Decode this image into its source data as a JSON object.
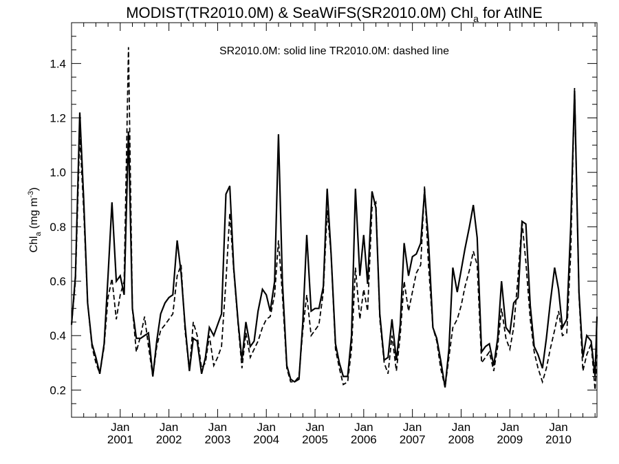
{
  "chart_data": {
    "type": "line",
    "title": {
      "main": "MODIST(TR2010.0M) & SeaWiFS(SR2010.0M)  Chl",
      "sub": "a",
      "suffix": " for AtlNE"
    },
    "annotation": "SR2010.0M: solid line   TR2010.0M: dashed line",
    "ylabel": {
      "main": "Chl",
      "sub": "a",
      "unit_prefix": " (mg m",
      "unit_sup": "-3",
      "unit_suffix": ")"
    },
    "xlim": [
      2000.0,
      2010.79
    ],
    "ylim": [
      0.1,
      1.55
    ],
    "yticks": [
      "0.2",
      "0.4",
      "0.6",
      "0.8",
      "1.0",
      "1.2",
      "1.4"
    ],
    "xticks": [
      {
        "month": "Jan",
        "year": "2001"
      },
      {
        "month": "Jan",
        "year": "2002"
      },
      {
        "month": "Jan",
        "year": "2003"
      },
      {
        "month": "Jan",
        "year": "2004"
      },
      {
        "month": "Jan",
        "year": "2005"
      },
      {
        "month": "Jan",
        "year": "2006"
      },
      {
        "month": "Jan",
        "year": "2007"
      },
      {
        "month": "Jan",
        "year": "2008"
      },
      {
        "month": "Jan",
        "year": "2009"
      },
      {
        "month": "Jan",
        "year": "2010"
      }
    ],
    "series": [
      {
        "style": "solid",
        "x": [
          2000.0,
          2000.08,
          2000.17,
          2000.25,
          2000.33,
          2000.42,
          2000.5,
          2000.58,
          2000.67,
          2000.75,
          2000.83,
          2000.92,
          2001.0,
          2001.08,
          2001.17,
          2001.25,
          2001.33,
          2001.42,
          2001.5,
          2001.58,
          2001.67,
          2001.75,
          2001.83,
          2001.92,
          2002.0,
          2002.08,
          2002.17,
          2002.25,
          2002.33,
          2002.42,
          2002.5,
          2002.58,
          2002.67,
          2002.75,
          2002.83,
          2002.92,
          2003.0,
          2003.08,
          2003.17,
          2003.25,
          2003.33,
          2003.42,
          2003.5,
          2003.58,
          2003.67,
          2003.75,
          2003.83,
          2003.92,
          2004.0,
          2004.08,
          2004.17,
          2004.25,
          2004.33,
          2004.42,
          2004.5,
          2004.58,
          2004.67,
          2004.75,
          2004.83,
          2004.92,
          2005.0,
          2005.08,
          2005.17,
          2005.25,
          2005.33,
          2005.42,
          2005.5,
          2005.58,
          2005.67,
          2005.75,
          2005.83,
          2005.92,
          2006.0,
          2006.08,
          2006.17,
          2006.25,
          2006.33,
          2006.42,
          2006.5,
          2006.58,
          2006.67,
          2006.75,
          2006.83,
          2006.92,
          2007.0,
          2007.08,
          2007.17,
          2007.25,
          2007.33,
          2007.42,
          2007.5,
          2007.58,
          2007.67,
          2007.75,
          2007.83,
          2007.92,
          2008.0,
          2008.08,
          2008.17,
          2008.25,
          2008.33,
          2008.42,
          2008.5,
          2008.58,
          2008.67,
          2008.75,
          2008.83,
          2008.92,
          2009.0,
          2009.08,
          2009.17,
          2009.25,
          2009.33,
          2009.42,
          2009.5,
          2009.58,
          2009.67,
          2009.75,
          2009.83,
          2009.92,
          2010.0,
          2010.08,
          2010.17,
          2010.25,
          2010.33,
          2010.42,
          2010.5,
          2010.58,
          2010.67,
          2010.75,
          2010.79
        ],
        "y": [
          0.44,
          0.62,
          1.22,
          0.9,
          0.52,
          0.37,
          0.32,
          0.26,
          0.37,
          0.62,
          0.89,
          0.6,
          0.62,
          0.55,
          1.15,
          0.5,
          0.39,
          0.39,
          0.4,
          0.41,
          0.25,
          0.38,
          0.48,
          0.52,
          0.54,
          0.55,
          0.75,
          0.63,
          0.44,
          0.27,
          0.39,
          0.38,
          0.26,
          0.32,
          0.43,
          0.4,
          0.44,
          0.48,
          0.92,
          0.95,
          0.65,
          0.45,
          0.31,
          0.45,
          0.36,
          0.38,
          0.49,
          0.57,
          0.55,
          0.49,
          0.6,
          1.14,
          0.6,
          0.29,
          0.24,
          0.23,
          0.24,
          0.45,
          0.77,
          0.49,
          0.5,
          0.5,
          0.58,
          0.94,
          0.7,
          0.37,
          0.3,
          0.25,
          0.25,
          0.4,
          0.94,
          0.62,
          0.77,
          0.59,
          0.93,
          0.87,
          0.48,
          0.31,
          0.32,
          0.46,
          0.31,
          0.44,
          0.74,
          0.62,
          0.69,
          0.7,
          0.74,
          0.93,
          0.75,
          0.43,
          0.39,
          0.31,
          0.21,
          0.35,
          0.65,
          0.56,
          0.64,
          0.72,
          0.8,
          0.88,
          0.76,
          0.34,
          0.36,
          0.37,
          0.29,
          0.39,
          0.6,
          0.43,
          0.41,
          0.52,
          0.54,
          0.82,
          0.81,
          0.51,
          0.36,
          0.33,
          0.28,
          0.39,
          0.52,
          0.65,
          0.57,
          0.43,
          0.46,
          0.8,
          1.3,
          0.56,
          0.32,
          0.4,
          0.38,
          0.25,
          0.47
        ]
      },
      {
        "style": "dashed",
        "x": [
          2000.0,
          2000.08,
          2000.17,
          2000.25,
          2000.33,
          2000.42,
          2000.5,
          2000.58,
          2000.67,
          2000.75,
          2000.83,
          2000.92,
          2001.0,
          2001.08,
          2001.17,
          2001.25,
          2001.33,
          2001.42,
          2001.5,
          2001.58,
          2001.67,
          2001.75,
          2001.83,
          2001.92,
          2002.0,
          2002.08,
          2002.17,
          2002.25,
          2002.33,
          2002.42,
          2002.5,
          2002.58,
          2002.67,
          2002.75,
          2002.83,
          2002.92,
          2003.0,
          2003.08,
          2003.17,
          2003.25,
          2003.33,
          2003.42,
          2003.5,
          2003.58,
          2003.67,
          2003.75,
          2003.83,
          2003.92,
          2004.0,
          2004.08,
          2004.17,
          2004.25,
          2004.33,
          2004.42,
          2004.5,
          2004.58,
          2004.67,
          2004.75,
          2004.83,
          2004.92,
          2005.0,
          2005.08,
          2005.17,
          2005.25,
          2005.33,
          2005.42,
          2005.5,
          2005.58,
          2005.67,
          2005.75,
          2005.83,
          2005.92,
          2006.0,
          2006.08,
          2006.17,
          2006.25,
          2006.33,
          2006.42,
          2006.5,
          2006.58,
          2006.67,
          2006.75,
          2006.83,
          2006.92,
          2007.0,
          2007.08,
          2007.17,
          2007.25,
          2007.33,
          2007.42,
          2007.5,
          2007.58,
          2007.67,
          2007.75,
          2007.83,
          2007.92,
          2008.0,
          2008.08,
          2008.17,
          2008.25,
          2008.33,
          2008.42,
          2008.5,
          2008.58,
          2008.67,
          2008.75,
          2008.83,
          2008.92,
          2009.0,
          2009.08,
          2009.17,
          2009.25,
          2009.33,
          2009.42,
          2009.5,
          2009.58,
          2009.67,
          2009.75,
          2009.83,
          2009.92,
          2010.0,
          2010.08,
          2010.17,
          2010.25,
          2010.33,
          2010.42,
          2010.5,
          2010.58,
          2010.67,
          2010.75,
          2010.79
        ],
        "y": [
          0.44,
          0.6,
          1.14,
          0.86,
          0.52,
          0.36,
          0.3,
          0.26,
          0.36,
          0.54,
          0.61,
          0.46,
          0.55,
          0.6,
          1.46,
          0.5,
          0.34,
          0.4,
          0.47,
          0.36,
          0.25,
          0.36,
          0.42,
          0.44,
          0.46,
          0.48,
          0.62,
          0.66,
          0.42,
          0.27,
          0.45,
          0.4,
          0.28,
          0.3,
          0.4,
          0.29,
          0.32,
          0.36,
          0.6,
          0.85,
          0.64,
          0.44,
          0.28,
          0.41,
          0.32,
          0.35,
          0.38,
          0.43,
          0.46,
          0.47,
          0.55,
          0.75,
          0.55,
          0.28,
          0.23,
          0.23,
          0.25,
          0.42,
          0.55,
          0.4,
          0.42,
          0.44,
          0.56,
          0.86,
          0.7,
          0.35,
          0.28,
          0.22,
          0.23,
          0.35,
          0.65,
          0.46,
          0.57,
          0.49,
          0.87,
          0.89,
          0.46,
          0.3,
          0.26,
          0.4,
          0.27,
          0.4,
          0.6,
          0.49,
          0.56,
          0.63,
          0.66,
          0.95,
          0.66,
          0.43,
          0.38,
          0.28,
          0.21,
          0.32,
          0.43,
          0.46,
          0.51,
          0.58,
          0.64,
          0.71,
          0.66,
          0.3,
          0.32,
          0.34,
          0.27,
          0.36,
          0.5,
          0.39,
          0.35,
          0.43,
          0.62,
          0.82,
          0.67,
          0.46,
          0.34,
          0.28,
          0.23,
          0.28,
          0.35,
          0.42,
          0.49,
          0.4,
          0.41,
          0.7,
          1.31,
          0.55,
          0.27,
          0.33,
          0.37,
          0.2,
          0.33
        ]
      }
    ]
  }
}
